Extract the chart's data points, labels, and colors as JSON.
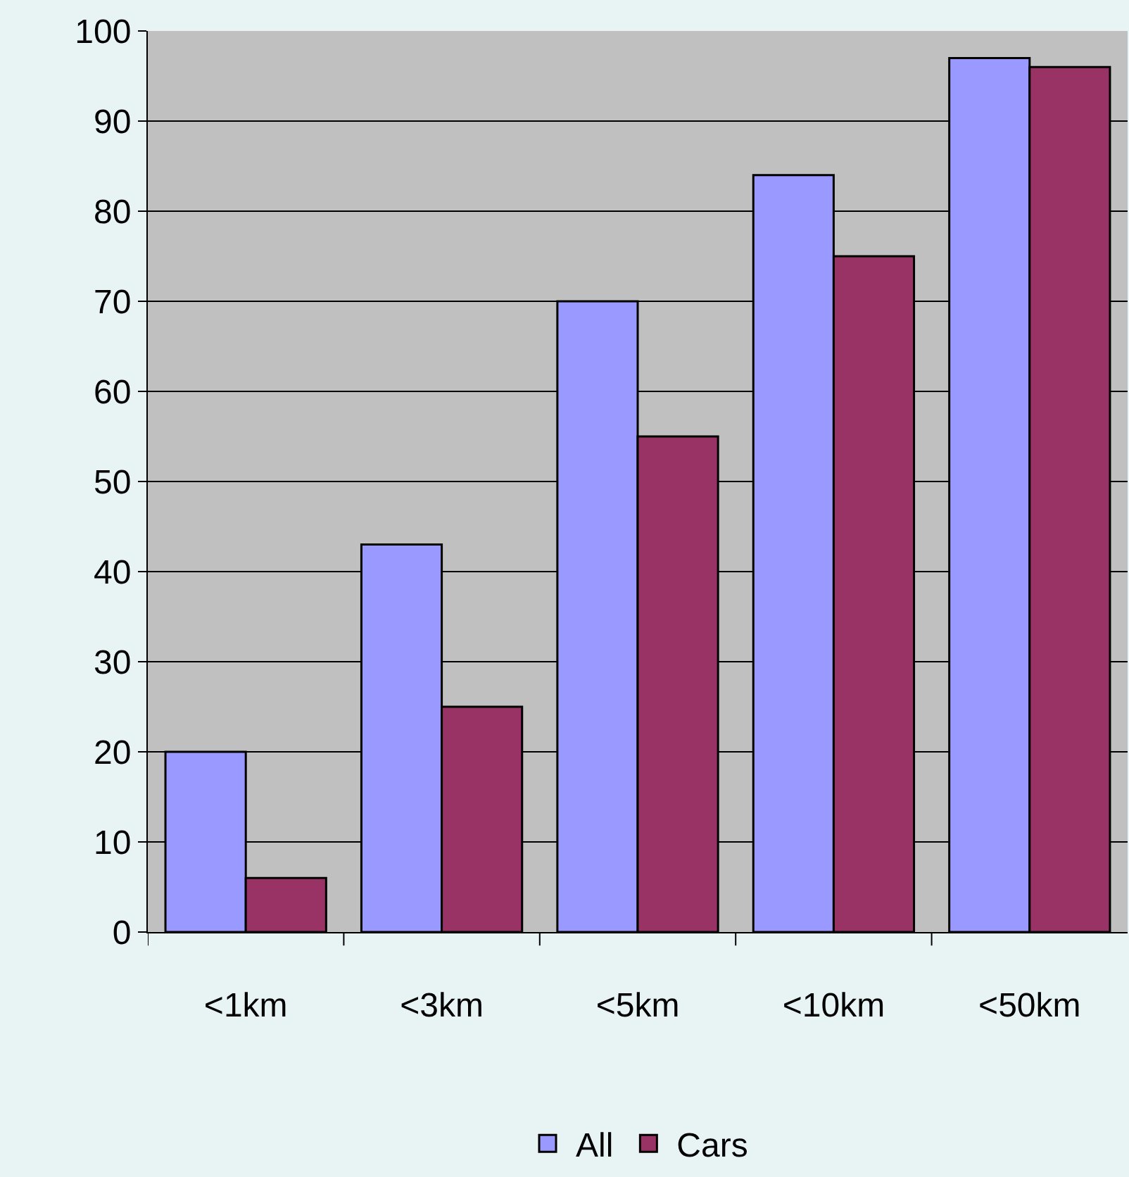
{
  "chart_data": {
    "type": "bar",
    "categories": [
      "<1km",
      "<3km",
      "<5km",
      "<10km",
      "<50km"
    ],
    "series": [
      {
        "name": "All",
        "color": "#9999ff",
        "values": [
          20,
          43,
          70,
          84,
          97
        ]
      },
      {
        "name": "Cars",
        "color": "#993366",
        "values": [
          6,
          25,
          55,
          75,
          96
        ]
      }
    ],
    "ylim": [
      0,
      100
    ],
    "yticks": [
      0,
      10,
      20,
      30,
      40,
      50,
      60,
      70,
      80,
      90,
      100
    ],
    "grid": "y",
    "legend": "bottom"
  }
}
